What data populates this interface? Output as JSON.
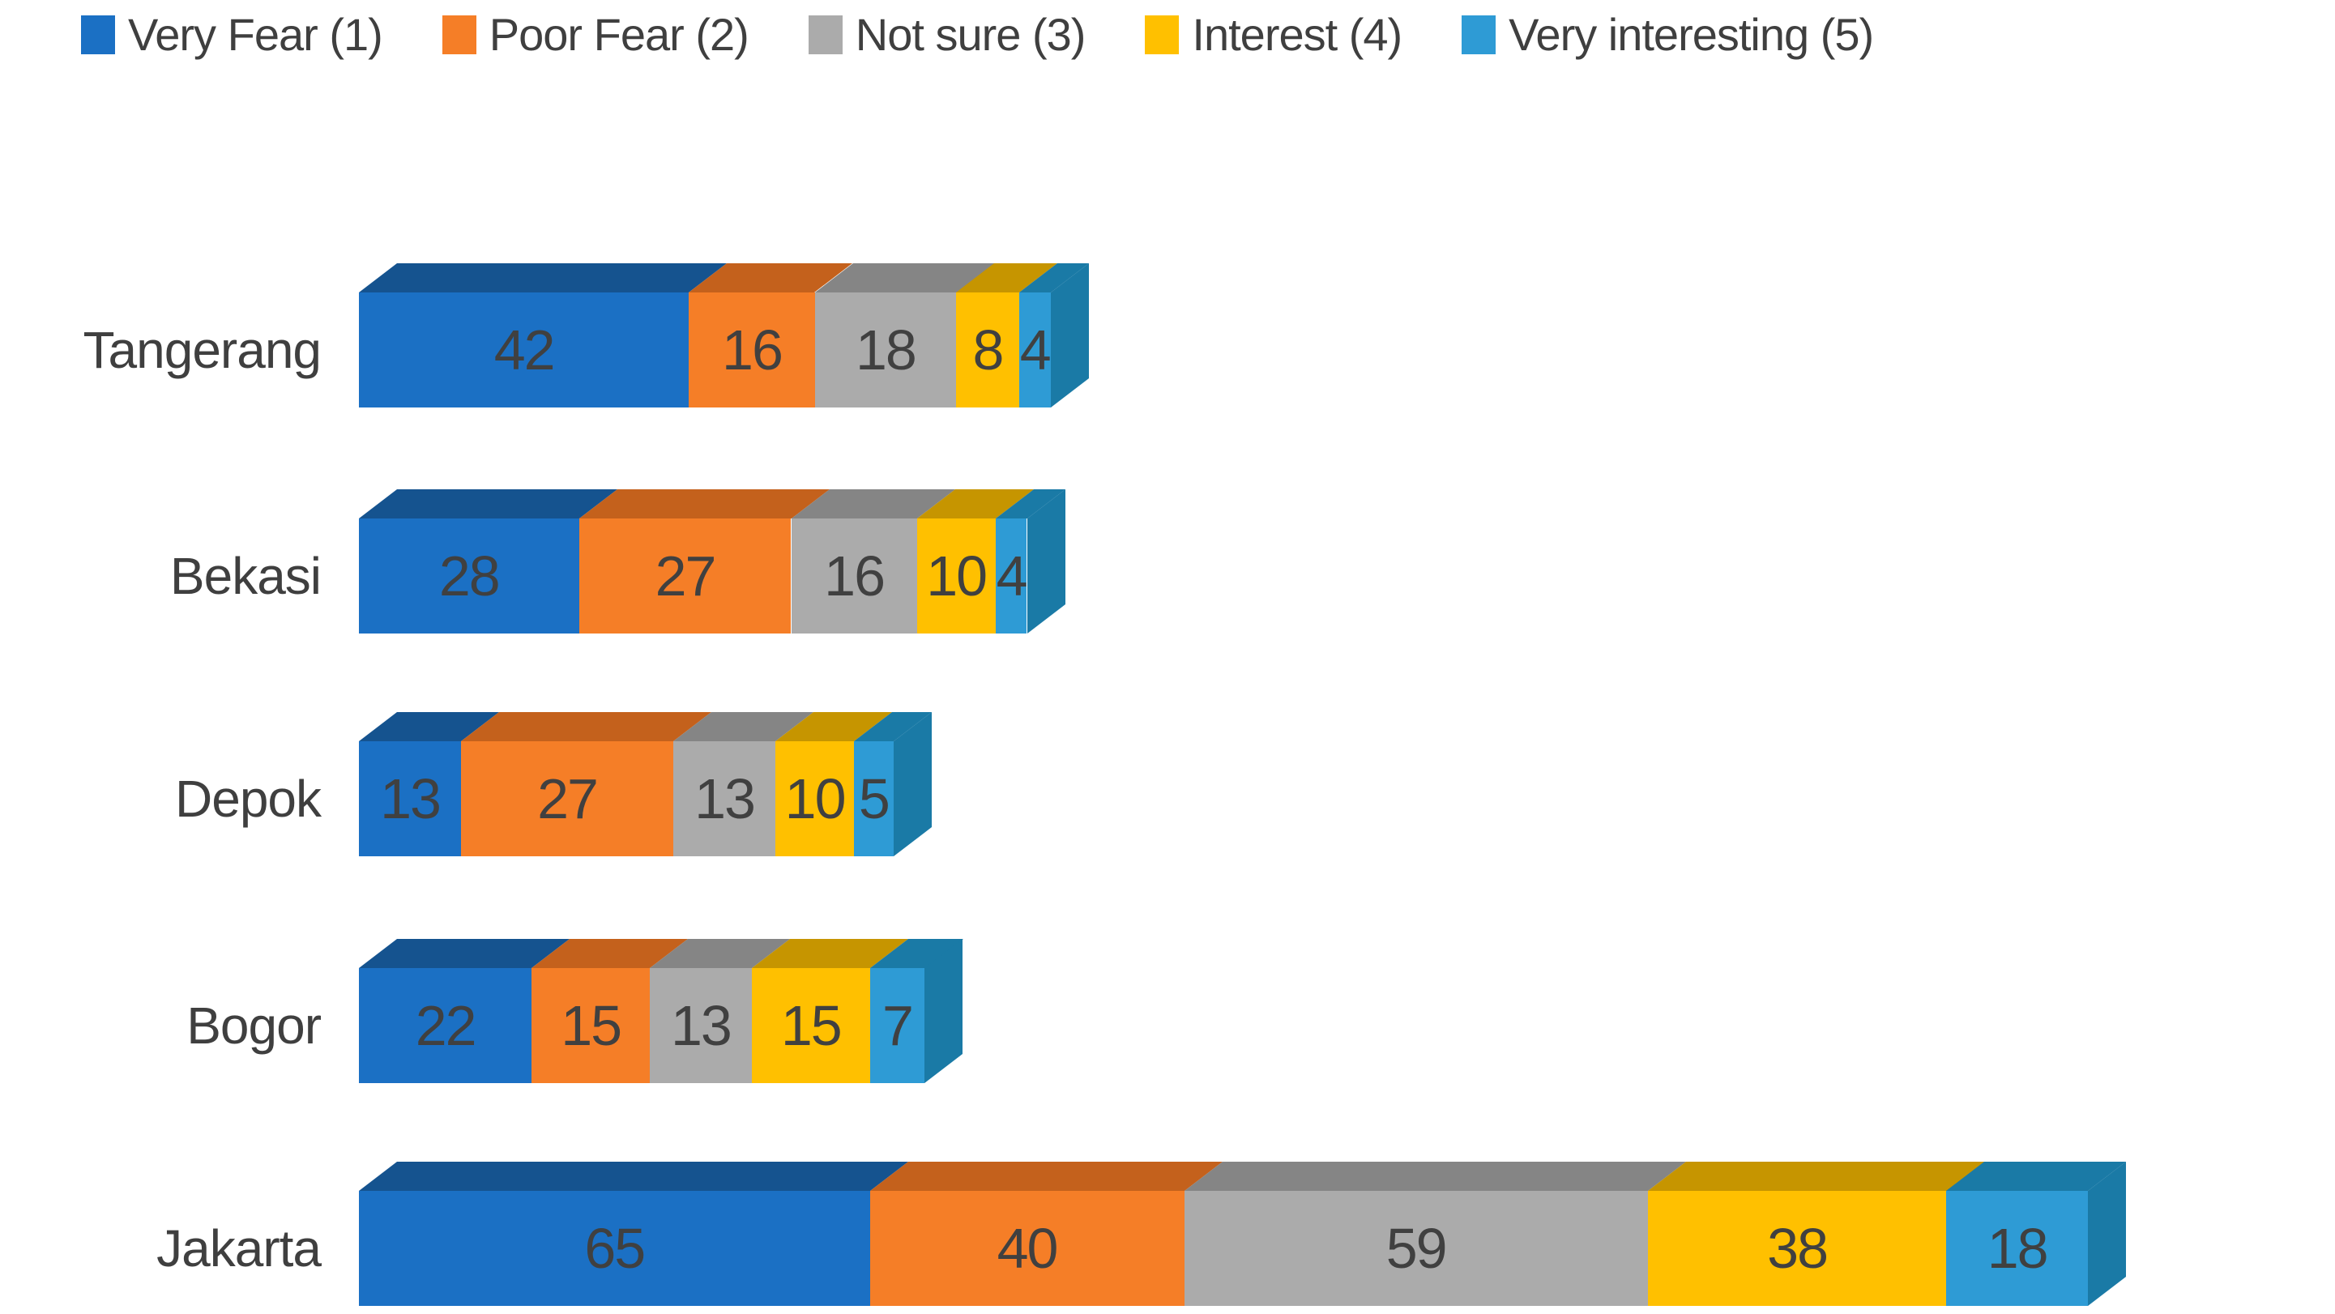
{
  "chart_data": {
    "type": "bar",
    "orientation": "horizontal",
    "stacked": true,
    "effect_3d": true,
    "title": "",
    "legend_position": "top",
    "value_labels": "inside-center",
    "background_color": "#FFFFFF",
    "label_text_color": "#3F3F3F",
    "categories": [
      "Tangerang",
      "Bekasi",
      "Depok",
      "Bogor",
      "Jakarta"
    ],
    "series": [
      {
        "name": "Very Fear (1)",
        "color": "#1B70C4",
        "dark_color": "#15538F",
        "values": [
          42,
          28,
          13,
          22,
          65
        ]
      },
      {
        "name": "Poor Fear (2)",
        "color": "#F57E27",
        "dark_color": "#C4611C",
        "values": [
          16,
          27,
          27,
          15,
          40
        ]
      },
      {
        "name": "Not sure (3)",
        "color": "#ABABAB",
        "dark_color": "#858585",
        "values": [
          18,
          16,
          13,
          13,
          59
        ]
      },
      {
        "name": "Interest (4)",
        "color": "#FFC000",
        "dark_color": "#C69500",
        "values": [
          8,
          10,
          10,
          15,
          38
        ]
      },
      {
        "name": "Very interesting (5)",
        "color": "#2E9BD5",
        "dark_color": "#1A7AA6",
        "values": [
          4,
          4,
          5,
          7,
          18
        ]
      }
    ],
    "category_totals": [
      88,
      85,
      68,
      72,
      220
    ],
    "x_axis": {
      "visible": false,
      "min": 0
    },
    "y_axis": {
      "visible": true,
      "labels": [
        "Tangerang",
        "Bekasi",
        "Depok",
        "Bogor",
        "Jakarta"
      ]
    },
    "gridlines": false
  }
}
